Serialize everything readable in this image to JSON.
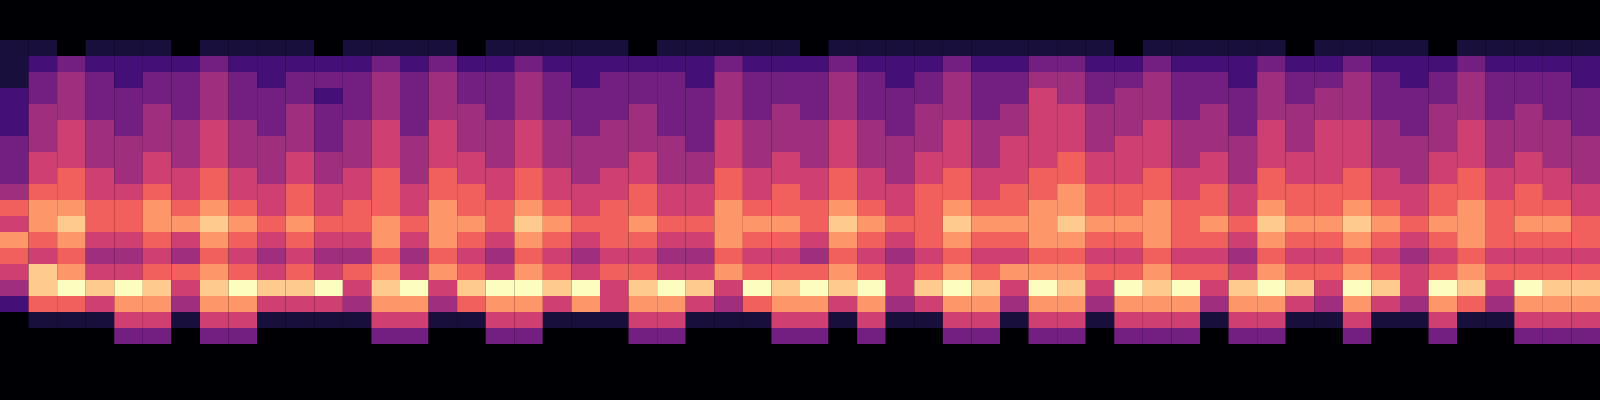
{
  "chart_data": {
    "type": "heatmap",
    "tick_labels": false,
    "color": "magma",
    "zlim": [
      0,
      9
    ],
    "cells": [
      [
        0,
        0,
        0,
        0,
        0,
        0,
        0,
        0,
        0,
        0,
        0,
        0,
        0,
        0,
        0,
        0,
        0,
        0,
        0,
        0,
        0,
        0,
        0,
        0,
        0,
        0,
        0,
        0,
        0,
        0,
        0,
        0,
        0,
        0,
        0,
        0,
        0,
        0,
        0,
        0,
        0,
        0,
        0,
        0,
        0,
        0,
        0,
        0,
        0,
        0,
        0,
        0,
        0,
        0,
        0,
        0
      ],
      [
        0,
        0,
        0,
        0,
        0,
        0,
        0,
        0,
        0,
        0,
        0,
        0,
        0,
        0,
        0,
        0,
        0,
        0,
        0,
        0,
        0,
        0,
        0,
        0,
        0,
        0,
        0,
        0,
        0,
        0,
        0,
        0,
        0,
        0,
        0,
        0,
        0,
        0,
        0,
        0,
        0,
        0,
        0,
        0,
        0,
        0,
        0,
        0,
        0,
        0,
        0,
        0,
        0,
        0,
        0,
        0
      ],
      [
        1,
        1,
        0,
        1,
        1,
        1,
        0,
        1,
        1,
        1,
        1,
        0,
        1,
        1,
        1,
        1,
        0,
        1,
        1,
        1,
        1,
        1,
        0,
        1,
        1,
        1,
        1,
        1,
        0,
        1,
        1,
        1,
        1,
        1,
        1,
        1,
        1,
        1,
        1,
        0,
        1,
        1,
        1,
        1,
        1,
        0,
        1,
        1,
        1,
        1,
        0,
        1,
        1,
        1,
        1,
        1
      ],
      [
        1,
        2,
        3,
        2,
        2,
        2,
        2,
        3,
        2,
        2,
        2,
        2,
        2,
        3,
        2,
        3,
        2,
        2,
        3,
        2,
        2,
        2,
        2,
        2,
        2,
        3,
        2,
        2,
        2,
        3,
        2,
        2,
        2,
        3,
        2,
        2,
        3,
        3,
        2,
        2,
        3,
        2,
        2,
        2,
        3,
        2,
        2,
        3,
        2,
        2,
        2,
        3,
        2,
        2,
        2,
        2
      ],
      [
        1,
        3,
        4,
        3,
        2,
        3,
        3,
        4,
        3,
        2,
        3,
        3,
        3,
        4,
        3,
        4,
        3,
        3,
        4,
        3,
        2,
        3,
        3,
        3,
        2,
        4,
        3,
        3,
        3,
        4,
        3,
        2,
        3,
        4,
        3,
        3,
        4,
        4,
        3,
        3,
        4,
        3,
        3,
        2,
        4,
        3,
        3,
        4,
        3,
        2,
        3,
        4,
        3,
        3,
        3,
        2
      ],
      [
        2,
        3,
        4,
        3,
        3,
        3,
        3,
        4,
        3,
        3,
        3,
        2,
        3,
        4,
        3,
        4,
        3,
        3,
        4,
        3,
        3,
        3,
        3,
        3,
        3,
        4,
        3,
        3,
        3,
        4,
        3,
        3,
        3,
        4,
        3,
        3,
        5,
        4,
        3,
        4,
        4,
        3,
        3,
        3,
        4,
        3,
        4,
        4,
        3,
        3,
        3,
        4,
        3,
        3,
        3,
        3
      ],
      [
        2,
        4,
        4,
        3,
        3,
        4,
        3,
        4,
        3,
        3,
        4,
        3,
        3,
        4,
        3,
        4,
        4,
        3,
        4,
        3,
        3,
        3,
        4,
        3,
        3,
        4,
        3,
        4,
        3,
        4,
        3,
        3,
        4,
        4,
        3,
        4,
        5,
        5,
        4,
        4,
        4,
        3,
        4,
        3,
        4,
        4,
        4,
        4,
        3,
        3,
        4,
        4,
        3,
        4,
        3,
        3
      ],
      [
        2,
        4,
        5,
        4,
        3,
        4,
        4,
        5,
        4,
        3,
        4,
        3,
        4,
        5,
        3,
        5,
        4,
        4,
        5,
        4,
        3,
        4,
        4,
        3,
        3,
        5,
        4,
        4,
        4,
        5,
        4,
        3,
        4,
        5,
        4,
        4,
        5,
        5,
        4,
        4,
        5,
        4,
        4,
        3,
        5,
        4,
        5,
        5,
        4,
        3,
        4,
        5,
        4,
        4,
        4,
        3
      ],
      [
        3,
        4,
        5,
        4,
        4,
        4,
        4,
        5,
        4,
        4,
        4,
        3,
        4,
        5,
        4,
        5,
        4,
        4,
        5,
        4,
        4,
        4,
        4,
        4,
        3,
        5,
        4,
        4,
        4,
        5,
        4,
        4,
        4,
        5,
        4,
        5,
        5,
        5,
        4,
        5,
        5,
        4,
        4,
        4,
        5,
        4,
        5,
        5,
        4,
        4,
        4,
        5,
        4,
        4,
        4,
        4
      ],
      [
        3,
        5,
        5,
        4,
        4,
        5,
        4,
        5,
        4,
        4,
        5,
        4,
        4,
        5,
        4,
        5,
        5,
        4,
        5,
        4,
        4,
        4,
        5,
        4,
        4,
        5,
        4,
        5,
        4,
        5,
        4,
        4,
        5,
        5,
        4,
        5,
        5,
        6,
        5,
        5,
        5,
        4,
        5,
        4,
        5,
        5,
        5,
        5,
        4,
        4,
        5,
        5,
        4,
        5,
        4,
        4
      ],
      [
        3,
        5,
        6,
        5,
        4,
        5,
        5,
        6,
        5,
        4,
        5,
        4,
        5,
        6,
        4,
        6,
        5,
        5,
        6,
        5,
        4,
        5,
        5,
        4,
        4,
        6,
        5,
        5,
        5,
        6,
        5,
        4,
        5,
        6,
        5,
        5,
        6,
        6,
        5,
        5,
        6,
        5,
        5,
        4,
        6,
        5,
        5,
        6,
        5,
        4,
        5,
        6,
        5,
        5,
        5,
        4
      ],
      [
        4,
        6,
        6,
        5,
        5,
        6,
        5,
        6,
        5,
        5,
        6,
        5,
        5,
        6,
        5,
        6,
        6,
        5,
        6,
        5,
        5,
        5,
        6,
        5,
        5,
        6,
        5,
        6,
        5,
        6,
        5,
        5,
        6,
        6,
        5,
        6,
        6,
        7,
        6,
        6,
        6,
        5,
        6,
        5,
        6,
        6,
        6,
        6,
        5,
        5,
        6,
        6,
        5,
        6,
        5,
        5
      ],
      [
        6,
        7,
        7,
        6,
        6,
        7,
        6,
        7,
        6,
        5,
        6,
        5,
        6,
        6,
        5,
        7,
        6,
        6,
        7,
        6,
        5,
        6,
        6,
        5,
        5,
        7,
        6,
        6,
        6,
        7,
        6,
        5,
        6,
        7,
        6,
        6,
        7,
        7,
        6,
        6,
        7,
        6,
        6,
        5,
        7,
        6,
        6,
        7,
        6,
        5,
        6,
        7,
        6,
        6,
        6,
        5
      ],
      [
        5,
        7,
        8,
        6,
        6,
        7,
        7,
        8,
        7,
        6,
        7,
        6,
        6,
        7,
        6,
        7,
        7,
        6,
        8,
        7,
        6,
        6,
        7,
        6,
        6,
        7,
        7,
        7,
        6,
        8,
        7,
        6,
        6,
        8,
        7,
        7,
        7,
        8,
        7,
        7,
        7,
        6,
        7,
        6,
        8,
        7,
        7,
        8,
        7,
        6,
        7,
        7,
        6,
        7,
        7,
        6
      ],
      [
        7,
        6,
        7,
        5,
        5,
        6,
        5,
        7,
        6,
        5,
        6,
        5,
        5,
        7,
        5,
        7,
        6,
        5,
        7,
        6,
        5,
        6,
        6,
        5,
        5,
        7,
        6,
        6,
        5,
        7,
        6,
        5,
        6,
        7,
        6,
        6,
        7,
        7,
        6,
        6,
        7,
        6,
        6,
        5,
        7,
        6,
        6,
        7,
        6,
        5,
        6,
        7,
        6,
        6,
        6,
        6
      ],
      [
        6,
        5,
        6,
        4,
        4,
        5,
        4,
        6,
        5,
        4,
        5,
        4,
        4,
        6,
        4,
        6,
        5,
        4,
        6,
        5,
        4,
        5,
        5,
        4,
        4,
        6,
        5,
        5,
        4,
        6,
        5,
        4,
        5,
        6,
        5,
        5,
        6,
        6,
        5,
        5,
        6,
        5,
        5,
        4,
        6,
        5,
        5,
        6,
        5,
        4,
        5,
        6,
        5,
        5,
        5,
        5
      ],
      [
        5,
        8,
        7,
        5,
        5,
        6,
        6,
        7,
        6,
        5,
        6,
        5,
        6,
        7,
        5,
        7,
        6,
        5,
        7,
        6,
        5,
        6,
        6,
        5,
        5,
        7,
        6,
        6,
        6,
        7,
        6,
        5,
        6,
        7,
        6,
        7,
        7,
        7,
        6,
        6,
        7,
        6,
        6,
        5,
        7,
        6,
        6,
        7,
        6,
        5,
        6,
        7,
        6,
        6,
        6,
        6
      ],
      [
        4,
        8,
        9,
        8,
        9,
        8,
        5,
        8,
        9,
        8,
        8,
        9,
        5,
        8,
        9,
        5,
        8,
        9,
        9,
        8,
        9,
        5,
        8,
        9,
        8,
        5,
        9,
        8,
        9,
        8,
        9,
        5,
        8,
        9,
        8,
        5,
        9,
        8,
        5,
        9,
        8,
        9,
        5,
        8,
        9,
        8,
        5,
        9,
        8,
        5,
        9,
        8,
        5,
        9,
        8,
        8
      ],
      [
        2,
        6,
        6,
        5,
        7,
        7,
        4,
        7,
        7,
        5,
        5,
        5,
        4,
        7,
        7,
        4,
        6,
        7,
        7,
        5,
        7,
        5,
        7,
        7,
        5,
        4,
        6,
        7,
        7,
        5,
        7,
        4,
        5,
        7,
        7,
        4,
        7,
        7,
        4,
        7,
        7,
        7,
        4,
        7,
        7,
        5,
        4,
        7,
        5,
        4,
        7,
        6,
        4,
        7,
        7,
        7
      ],
      [
        0,
        1,
        1,
        1,
        5,
        5,
        1,
        5,
        5,
        1,
        1,
        1,
        1,
        5,
        5,
        1,
        1,
        5,
        5,
        1,
        1,
        1,
        5,
        5,
        1,
        1,
        1,
        5,
        5,
        1,
        5,
        1,
        1,
        5,
        5,
        1,
        5,
        5,
        1,
        5,
        5,
        5,
        1,
        5,
        5,
        1,
        1,
        5,
        1,
        1,
        5,
        1,
        1,
        5,
        5,
        5
      ],
      [
        0,
        0,
        0,
        0,
        3,
        3,
        0,
        3,
        3,
        0,
        0,
        0,
        0,
        3,
        3,
        0,
        0,
        3,
        3,
        0,
        0,
        0,
        3,
        3,
        0,
        0,
        0,
        3,
        3,
        0,
        3,
        0,
        0,
        3,
        3,
        0,
        3,
        3,
        0,
        3,
        3,
        3,
        0,
        3,
        3,
        0,
        0,
        3,
        0,
        0,
        3,
        0,
        0,
        3,
        3,
        3
      ],
      [
        0,
        0,
        0,
        0,
        0,
        0,
        0,
        0,
        0,
        0,
        0,
        0,
        0,
        0,
        0,
        0,
        0,
        0,
        0,
        0,
        0,
        0,
        0,
        0,
        0,
        0,
        0,
        0,
        0,
        0,
        0,
        0,
        0,
        0,
        0,
        0,
        0,
        0,
        0,
        0,
        0,
        0,
        0,
        0,
        0,
        0,
        0,
        0,
        0,
        0,
        0,
        0,
        0,
        0,
        0,
        0
      ],
      [
        0,
        0,
        0,
        0,
        0,
        0,
        0,
        0,
        0,
        0,
        0,
        0,
        0,
        0,
        0,
        0,
        0,
        0,
        0,
        0,
        0,
        0,
        0,
        0,
        0,
        0,
        0,
        0,
        0,
        0,
        0,
        0,
        0,
        0,
        0,
        0,
        0,
        0,
        0,
        0,
        0,
        0,
        0,
        0,
        0,
        0,
        0,
        0,
        0,
        0,
        0,
        0,
        0,
        0,
        0,
        0
      ],
      [
        0,
        0,
        0,
        0,
        0,
        0,
        0,
        0,
        0,
        0,
        0,
        0,
        0,
        0,
        0,
        0,
        0,
        0,
        0,
        0,
        0,
        0,
        0,
        0,
        0,
        0,
        0,
        0,
        0,
        0,
        0,
        0,
        0,
        0,
        0,
        0,
        0,
        0,
        0,
        0,
        0,
        0,
        0,
        0,
        0,
        0,
        0,
        0,
        0,
        0,
        0,
        0,
        0,
        0,
        0,
        0
      ]
    ]
  }
}
